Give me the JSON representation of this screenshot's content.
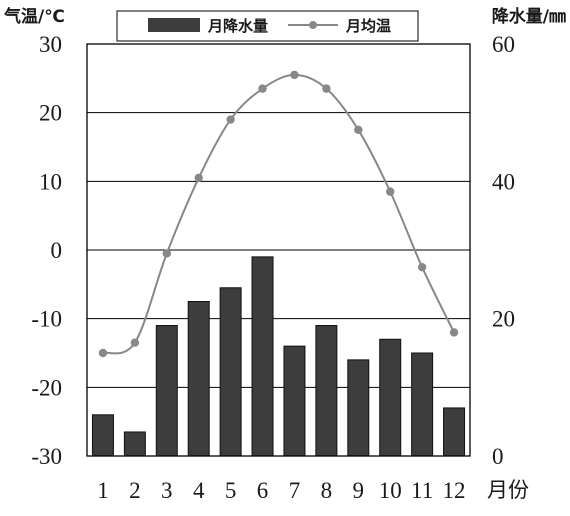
{
  "chart_data": {
    "type": "bar+line",
    "categories": [
      "1",
      "2",
      "3",
      "4",
      "5",
      "6",
      "7",
      "8",
      "9",
      "10",
      "11",
      "12"
    ],
    "series": [
      {
        "name": "月降水量",
        "type": "bar",
        "axis": "right",
        "color": "#3d3d3d",
        "values": [
          6,
          3.5,
          19,
          22.5,
          24.5,
          29,
          16,
          19,
          14,
          17,
          15,
          7
        ]
      },
      {
        "name": "月均温",
        "type": "line",
        "axis": "left",
        "color": "#888888",
        "values": [
          -15,
          -13.5,
          -0.5,
          10.5,
          19,
          23.5,
          25.5,
          23.5,
          17.5,
          8.5,
          -2.5,
          -12
        ]
      }
    ],
    "ylabel_left": "气温/℃",
    "ylabel_right": "降水量/㎜",
    "xlabel": "月份",
    "ylim_left": [
      -30,
      30
    ],
    "yticks_left": [
      "30",
      "20",
      "10",
      "0",
      "-10",
      "-20",
      "-30"
    ],
    "ylim_right": [
      0,
      60
    ],
    "yticks_right": [
      "60",
      "40",
      "20",
      "0"
    ],
    "grid": "horizontal",
    "legend_position": "top-center"
  }
}
